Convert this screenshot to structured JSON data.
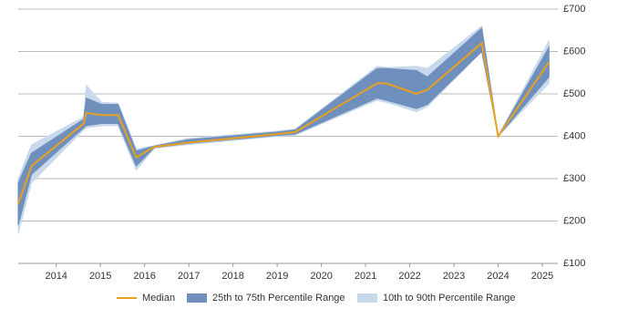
{
  "chart_data": {
    "type": "band-line",
    "x": [
      2013.14,
      2013.44,
      2014.62,
      2014.68,
      2015.03,
      2015.4,
      2015.81,
      2016.22,
      2016.98,
      2019.0,
      2019.41,
      2021.26,
      2021.47,
      2022.15,
      2022.4,
      2023.63,
      2024.0,
      2025.15
    ],
    "xlim": [
      2013.14,
      2025.35
    ],
    "xticks": [
      2014,
      2015,
      2016,
      2017,
      2018,
      2019,
      2020,
      2021,
      2022,
      2023,
      2024,
      2025
    ],
    "ylim": [
      100,
      700
    ],
    "yticks": [
      {
        "value": 100,
        "label": "£100"
      },
      {
        "value": 200,
        "label": "£200"
      },
      {
        "value": 300,
        "label": "£300"
      },
      {
        "value": 400,
        "label": "£400"
      },
      {
        "value": 500,
        "label": "£500"
      },
      {
        "value": 600,
        "label": "£600"
      },
      {
        "value": 700,
        "label": "£700"
      }
    ],
    "grid": true,
    "legend": "bottom",
    "series": [
      {
        "name": "Median",
        "color": "#e8a020",
        "values": [
          240,
          330,
          430,
          455,
          450,
          450,
          350,
          375,
          385,
          405,
          410,
          525,
          525,
          500,
          510,
          620,
          400,
          575
        ]
      },
      {
        "name": "25th to 75th Percentile Range",
        "color": "#6f8fbd",
        "low": [
          190,
          310,
          420,
          425,
          430,
          430,
          330,
          373,
          383,
          402,
          405,
          490,
          485,
          465,
          475,
          600,
          400,
          540
        ],
        "high": [
          290,
          360,
          440,
          490,
          475,
          475,
          365,
          377,
          392,
          410,
          415,
          560,
          560,
          555,
          540,
          655,
          400,
          610
        ]
      },
      {
        "name": "10th to 90th Percentile Range",
        "color": "#c9d9ec",
        "low": [
          170,
          290,
          415,
          420,
          425,
          425,
          320,
          372,
          380,
          400,
          403,
          485,
          480,
          458,
          470,
          600,
          400,
          525
        ],
        "high": [
          300,
          380,
          445,
          520,
          480,
          478,
          370,
          378,
          395,
          412,
          417,
          565,
          562,
          565,
          560,
          660,
          400,
          625
        ]
      }
    ]
  }
}
